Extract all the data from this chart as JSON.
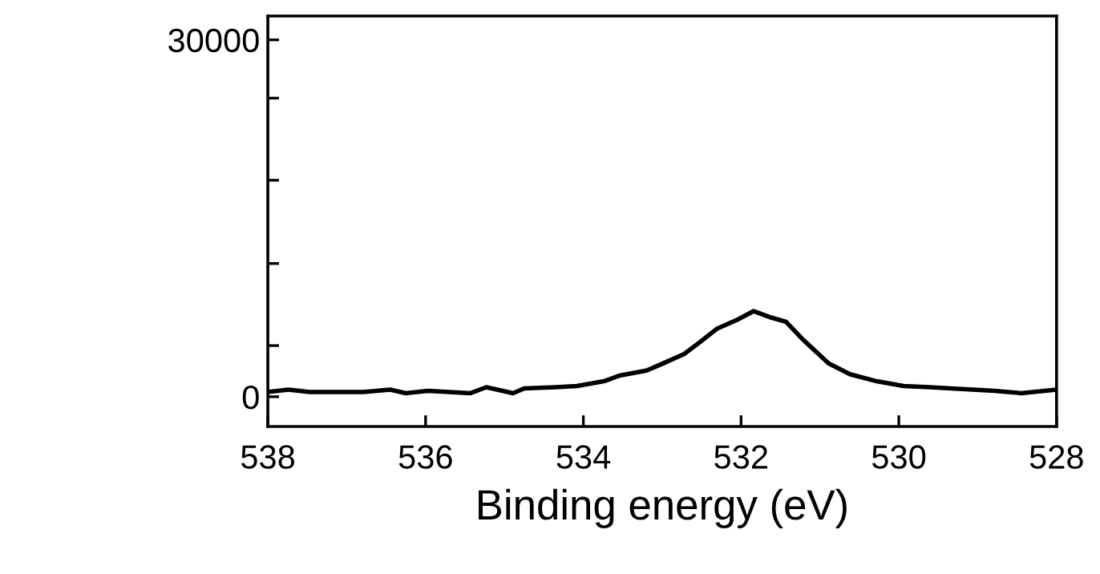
{
  "chart_data": {
    "type": "line",
    "xlabel": "Binding energy (eV)",
    "x": [
      538.0,
      537.74,
      537.47,
      537.13,
      536.79,
      536.45,
      536.25,
      535.97,
      535.43,
      535.23,
      534.89,
      534.75,
      534.35,
      534.08,
      533.74,
      533.53,
      533.2,
      532.99,
      532.72,
      532.52,
      532.31,
      532.04,
      531.84,
      531.64,
      531.43,
      531.23,
      530.89,
      530.62,
      530.28,
      529.94,
      529.61,
      529.34,
      528.79,
      528.45,
      528.0
    ],
    "series": [
      {
        "color": "#000000",
        "values": [
          400,
          600,
          400,
          400,
          400,
          600,
          300,
          500,
          300,
          800,
          300,
          700,
          800,
          900,
          1300,
          1800,
          2200,
          2800,
          3600,
          4600,
          5700,
          6500,
          7200,
          6700,
          6300,
          4900,
          2800,
          1900,
          1300,
          900,
          800,
          700,
          500,
          300,
          600
        ]
      }
    ],
    "xlim": [
      538,
      528
    ],
    "xticks": [
      538,
      536,
      534,
      532,
      530,
      528
    ],
    "ylim": [
      -2500,
      32000
    ],
    "yticks": [
      0,
      {
        "value": 4300,
        "label": null
      },
      {
        "value": 11200,
        "label": null
      },
      {
        "value": 18200,
        "label": null
      },
      {
        "value": 25100,
        "label": null
      },
      30000
    ],
    "grid": false,
    "legend": false,
    "marker": "none",
    "line_style": "solid"
  }
}
